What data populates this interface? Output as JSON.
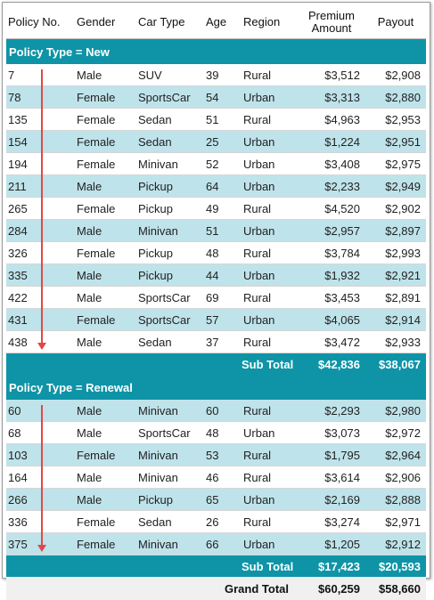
{
  "columns": [
    "Policy No.",
    "Gender",
    "Car Type",
    "Age",
    "Region",
    "Premium Amount",
    "Payout"
  ],
  "premium_header": [
    "Premium",
    "Amount"
  ],
  "groups": [
    {
      "label": "Policy Type = New",
      "rows": [
        [
          "7",
          "Male",
          "SUV",
          "39",
          "Rural",
          "$3,512",
          "$2,908"
        ],
        [
          "78",
          "Female",
          "SportsCar",
          "54",
          "Urban",
          "$3,313",
          "$2,880"
        ],
        [
          "135",
          "Female",
          "Sedan",
          "51",
          "Rural",
          "$4,963",
          "$2,953"
        ],
        [
          "154",
          "Female",
          "Sedan",
          "25",
          "Urban",
          "$1,224",
          "$2,951"
        ],
        [
          "194",
          "Female",
          "Minivan",
          "52",
          "Urban",
          "$3,408",
          "$2,975"
        ],
        [
          "211",
          "Male",
          "Pickup",
          "64",
          "Urban",
          "$2,233",
          "$2,949"
        ],
        [
          "265",
          "Female",
          "Pickup",
          "49",
          "Rural",
          "$4,520",
          "$2,902"
        ],
        [
          "284",
          "Male",
          "Minivan",
          "51",
          "Urban",
          "$2,957",
          "$2,897"
        ],
        [
          "326",
          "Female",
          "Pickup",
          "48",
          "Rural",
          "$3,784",
          "$2,993"
        ],
        [
          "335",
          "Male",
          "Pickup",
          "44",
          "Urban",
          "$1,932",
          "$2,921"
        ],
        [
          "422",
          "Male",
          "SportsCar",
          "69",
          "Rural",
          "$3,453",
          "$2,891"
        ],
        [
          "431",
          "Female",
          "SportsCar",
          "57",
          "Urban",
          "$4,065",
          "$2,914"
        ],
        [
          "438",
          "Male",
          "Sedan",
          "37",
          "Rural",
          "$3,472",
          "$2,933"
        ]
      ],
      "subtotal": {
        "label": "Sub Total",
        "premium": "$42,836",
        "payout": "$38,067"
      }
    },
    {
      "label": "Policy Type = Renewal",
      "rows": [
        [
          "60",
          "Male",
          "Minivan",
          "60",
          "Rural",
          "$2,293",
          "$2,980"
        ],
        [
          "68",
          "Male",
          "SportsCar",
          "48",
          "Urban",
          "$3,073",
          "$2,972"
        ],
        [
          "103",
          "Female",
          "Minivan",
          "53",
          "Rural",
          "$1,795",
          "$2,964"
        ],
        [
          "164",
          "Male",
          "Minivan",
          "46",
          "Rural",
          "$3,614",
          "$2,906"
        ],
        [
          "266",
          "Male",
          "Pickup",
          "65",
          "Urban",
          "$2,169",
          "$2,888"
        ],
        [
          "336",
          "Female",
          "Sedan",
          "26",
          "Rural",
          "$3,274",
          "$2,971"
        ],
        [
          "375",
          "Female",
          "Minivan",
          "66",
          "Urban",
          "$1,205",
          "$2,912"
        ]
      ],
      "subtotal": {
        "label": "Sub Total",
        "premium": "$17,423",
        "payout": "$20,593"
      }
    }
  ],
  "grand_total": {
    "label": "Grand Total",
    "premium": "$60,259",
    "payout": "$58,660"
  },
  "colors": {
    "accent": "#0e94a6",
    "row_alt": "#bfe3ea",
    "sort_arrow": "#e04848"
  },
  "icons": {
    "sort_indicator": "down-arrow-icon"
  }
}
